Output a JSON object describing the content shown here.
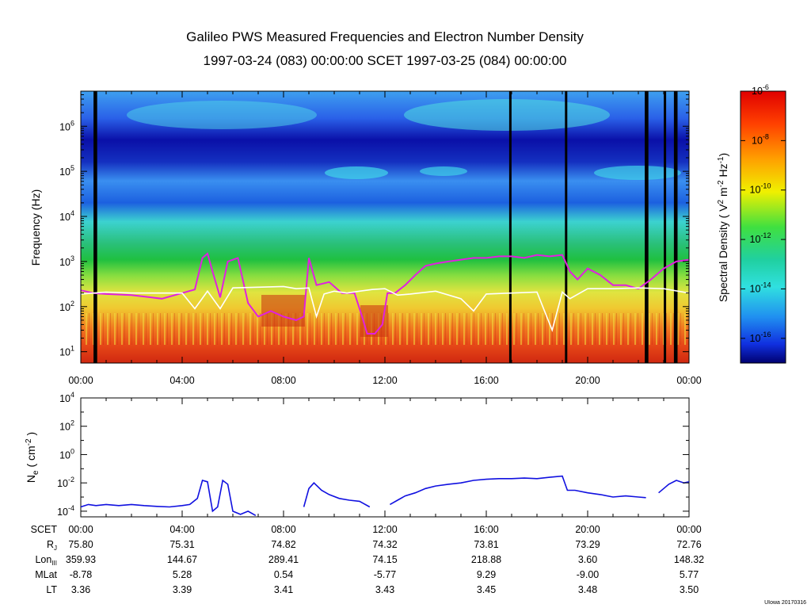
{
  "header": {
    "title": "Galileo PWS Measured Frequencies and Electron Number Density",
    "subtitle": "1997-03-24 (083) 00:00:00 SCET 1997-03-25 (084) 00:00:00"
  },
  "chart_data": [
    {
      "type": "heatmap",
      "name": "spectrogram",
      "x_unit": "hours",
      "xlim": [
        0,
        24
      ],
      "x_ticks": [
        0,
        4,
        8,
        12,
        16,
        20,
        24
      ],
      "x_tick_labels": [
        "00:00",
        "04:00",
        "08:00",
        "12:00",
        "16:00",
        "20:00",
        "00:00"
      ],
      "ylabel": "Frequency (Hz)",
      "yscale": "log",
      "ylim": [
        5.6,
        6000000
      ],
      "y_ticks": [
        10,
        100,
        1000,
        10000,
        100000,
        1000000
      ],
      "y_tick_base": "10",
      "y_tick_exps": [
        "1",
        "2",
        "3",
        "4",
        "5",
        "6"
      ],
      "colorbar": {
        "label_pre": "Spectral Density (",
        "label_unit": " V",
        "label_exp1": "2",
        "label_mid": " m",
        "label_exp2": "-2",
        "label_hz": " Hz",
        "label_exp3": "-1",
        "label_post": ")",
        "scale": "log",
        "range": [
          1e-17,
          1e-06
        ],
        "tick_base": "10",
        "tick_exps": [
          "-6",
          "-8",
          "-10",
          "-12",
          "-14",
          "-16"
        ],
        "tick_values": [
          1e-06,
          1e-08,
          1e-10,
          1e-12,
          1e-14,
          1e-16
        ]
      },
      "data_gaps_hours": [
        0.55,
        0.6,
        16.95,
        19.15,
        22.3,
        22.35,
        23.05,
        23.45,
        23.5
      ],
      "series": [
        {
          "name": "magenta",
          "color": "#e020e0",
          "x": [
            0,
            0.5,
            1,
            2,
            2.8,
            3.2,
            4,
            4.5,
            4.8,
            5.0,
            5.2,
            5.5,
            5.8,
            6.2,
            6.6,
            7.0,
            7.5,
            8.0,
            8.5,
            8.8,
            9.0,
            9.3,
            9.8,
            10.3,
            10.8,
            11.1,
            11.3,
            11.6,
            11.9,
            12.1,
            12.4,
            12.8,
            13.2,
            13.6,
            14.0,
            14.5,
            15.0,
            15.5,
            16.0,
            16.5,
            17.0,
            17.5,
            18.0,
            18.5,
            19.0,
            19.3,
            19.6,
            20.0,
            20.5,
            21.0,
            21.5,
            22.0,
            22.5,
            23.0,
            23.5,
            24.0
          ],
          "y": [
            230,
            200,
            190,
            180,
            160,
            150,
            200,
            240,
            1200,
            1500,
            600,
            160,
            1000,
            1200,
            120,
            60,
            80,
            60,
            50,
            60,
            1200,
            300,
            350,
            200,
            200,
            60,
            25,
            25,
            40,
            200,
            200,
            300,
            500,
            800,
            900,
            1000,
            1100,
            1200,
            1200,
            1300,
            1300,
            1200,
            1400,
            1300,
            1400,
            600,
            400,
            700,
            500,
            300,
            300,
            250,
            400,
            700,
            1000,
            1100
          ]
        },
        {
          "name": "white",
          "color": "#ffffff",
          "x": [
            0,
            1,
            2,
            3,
            4,
            4.5,
            5,
            5.5,
            6,
            7,
            8,
            8.5,
            9,
            9.3,
            9.6,
            10,
            10.5,
            11,
            11.5,
            12,
            12.5,
            13,
            14,
            15,
            15.5,
            16,
            17,
            18,
            18.6,
            19,
            19.3,
            20,
            21,
            22,
            23,
            24
          ],
          "y": [
            190,
            210,
            200,
            200,
            200,
            90,
            220,
            90,
            260,
            270,
            280,
            250,
            260,
            60,
            190,
            220,
            200,
            220,
            240,
            250,
            180,
            190,
            220,
            150,
            80,
            190,
            200,
            210,
            30,
            210,
            150,
            250,
            250,
            260,
            250,
            200
          ]
        }
      ]
    },
    {
      "type": "line",
      "name": "density",
      "xlim": [
        0,
        24
      ],
      "ylabel_base": "N",
      "ylabel_sub": "e",
      "ylabel_pre": " ( cm",
      "ylabel_exp": "-2",
      "ylabel_post": " )",
      "yscale": "log",
      "ylim": [
        4e-05,
        10000
      ],
      "y_ticks": [
        0.0001,
        0.01,
        1,
        100,
        10000
      ],
      "y_tick_base": "10",
      "y_tick_exps": [
        "-4",
        "-2",
        "0",
        "2",
        "4"
      ],
      "series": [
        {
          "name": "Ne",
          "color": "#1010e0",
          "segments": [
            {
              "x": [
                0.0,
                0.3,
                0.6,
                1.0,
                1.5,
                2.0,
                2.5,
                3.0,
                3.5,
                4.0,
                4.3,
                4.6,
                4.8,
                5.0,
                5.2,
                5.4,
                5.6,
                5.8,
                6.0,
                6.3,
                6.6,
                6.9
              ],
              "y": [
                0.0002,
                0.0003,
                0.00025,
                0.0003,
                0.00025,
                0.0003,
                0.00025,
                0.00022,
                0.0002,
                0.00025,
                0.0003,
                0.0008,
                0.015,
                0.012,
                0.0001,
                0.0002,
                0.015,
                0.008,
                0.0001,
                6e-05,
                0.0001,
                5e-05
              ]
            },
            {
              "x": [
                8.8,
                9.0,
                9.2,
                9.5,
                9.8,
                10.2,
                10.6,
                11.0,
                11.4
              ],
              "y": [
                0.0002,
                0.004,
                0.01,
                0.003,
                0.0015,
                0.0008,
                0.0006,
                0.0005,
                0.0002
              ]
            },
            {
              "x": [
                12.2,
                12.5,
                12.8,
                13.2,
                13.6,
                14.0,
                14.5,
                15.0,
                15.5,
                16.0,
                16.5,
                17.0,
                17.5,
                18.0,
                18.5,
                19.0,
                19.2,
                19.5,
                20.0,
                20.5,
                21.0,
                21.5,
                22.0,
                22.3
              ],
              "y": [
                0.0003,
                0.0006,
                0.0012,
                0.002,
                0.004,
                0.006,
                0.008,
                0.01,
                0.015,
                0.018,
                0.02,
                0.02,
                0.022,
                0.02,
                0.025,
                0.03,
                0.003,
                0.003,
                0.002,
                0.0015,
                0.001,
                0.0012,
                0.001,
                0.0009
              ]
            },
            {
              "x": [
                22.8,
                23.0,
                23.2,
                23.5,
                23.8,
                24.0
              ],
              "y": [
                0.002,
                0.004,
                0.008,
                0.015,
                0.01,
                0.012
              ]
            }
          ]
        }
      ]
    }
  ],
  "ephemeris": {
    "row_labels": [
      "SCET",
      "R",
      "Lon",
      "MLat",
      "LT"
    ],
    "r_sub": "J",
    "lon_sub": "III",
    "rows": {
      "scet": [
        "00:00",
        "04:00",
        "08:00",
        "12:00",
        "16:00",
        "20:00",
        "00:00"
      ],
      "rj": [
        "75.80",
        "75.31",
        "74.82",
        "74.32",
        "73.81",
        "73.29",
        "72.76"
      ],
      "lon": [
        "359.93",
        "144.67",
        "289.41",
        "74.15",
        "218.88",
        "3.60",
        "148.32"
      ],
      "mlat": [
        "-8.78",
        "5.28",
        "0.54",
        "-5.77",
        "9.29",
        "-9.00",
        "5.77"
      ],
      "lt": [
        "3.36",
        "3.39",
        "3.41",
        "3.43",
        "3.45",
        "3.48",
        "3.50"
      ]
    }
  },
  "footer": {
    "credit": "UIowa 20170316"
  }
}
